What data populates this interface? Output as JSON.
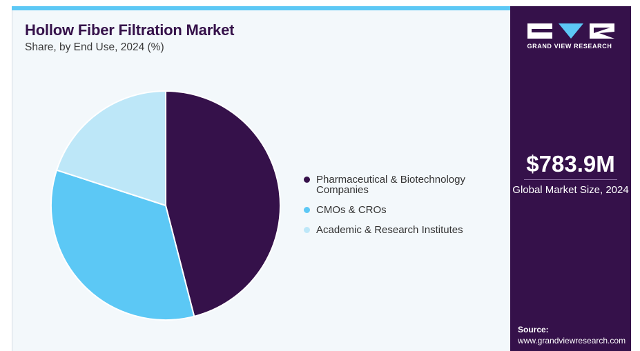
{
  "header": {
    "title": "Hollow Fiber Filtration Market",
    "subtitle": "Share, by End Use, 2024 (%)"
  },
  "chart_data": {
    "type": "pie",
    "title": "Hollow Fiber Filtration Market",
    "subtitle": "Share, by End Use, 2024 (%)",
    "categories": [
      "Pharmaceutical & Biotechnology Companies",
      "CMOs & CROs",
      "Academic & Research Institutes"
    ],
    "legend_lines": [
      [
        "Pharmaceutical & Biotechnology",
        "Companies"
      ],
      [
        "CMOs & CROs"
      ],
      [
        "Academic & Research Institutes"
      ]
    ],
    "values": [
      46,
      34,
      20
    ],
    "colors": [
      "#35114a",
      "#5cc8f5",
      "#bde7f8"
    ],
    "legend_position": "right"
  },
  "sidebar": {
    "brand": "GRAND VIEW RESEARCH",
    "market_value": "$783.9M",
    "market_caption": "Global Market Size, 2024",
    "source_label": "Source:",
    "source_url": "www.grandviewresearch.com"
  },
  "colors": {
    "accent": "#5cc8f5",
    "brand": "#35114a",
    "background": "#f3f8fb"
  }
}
